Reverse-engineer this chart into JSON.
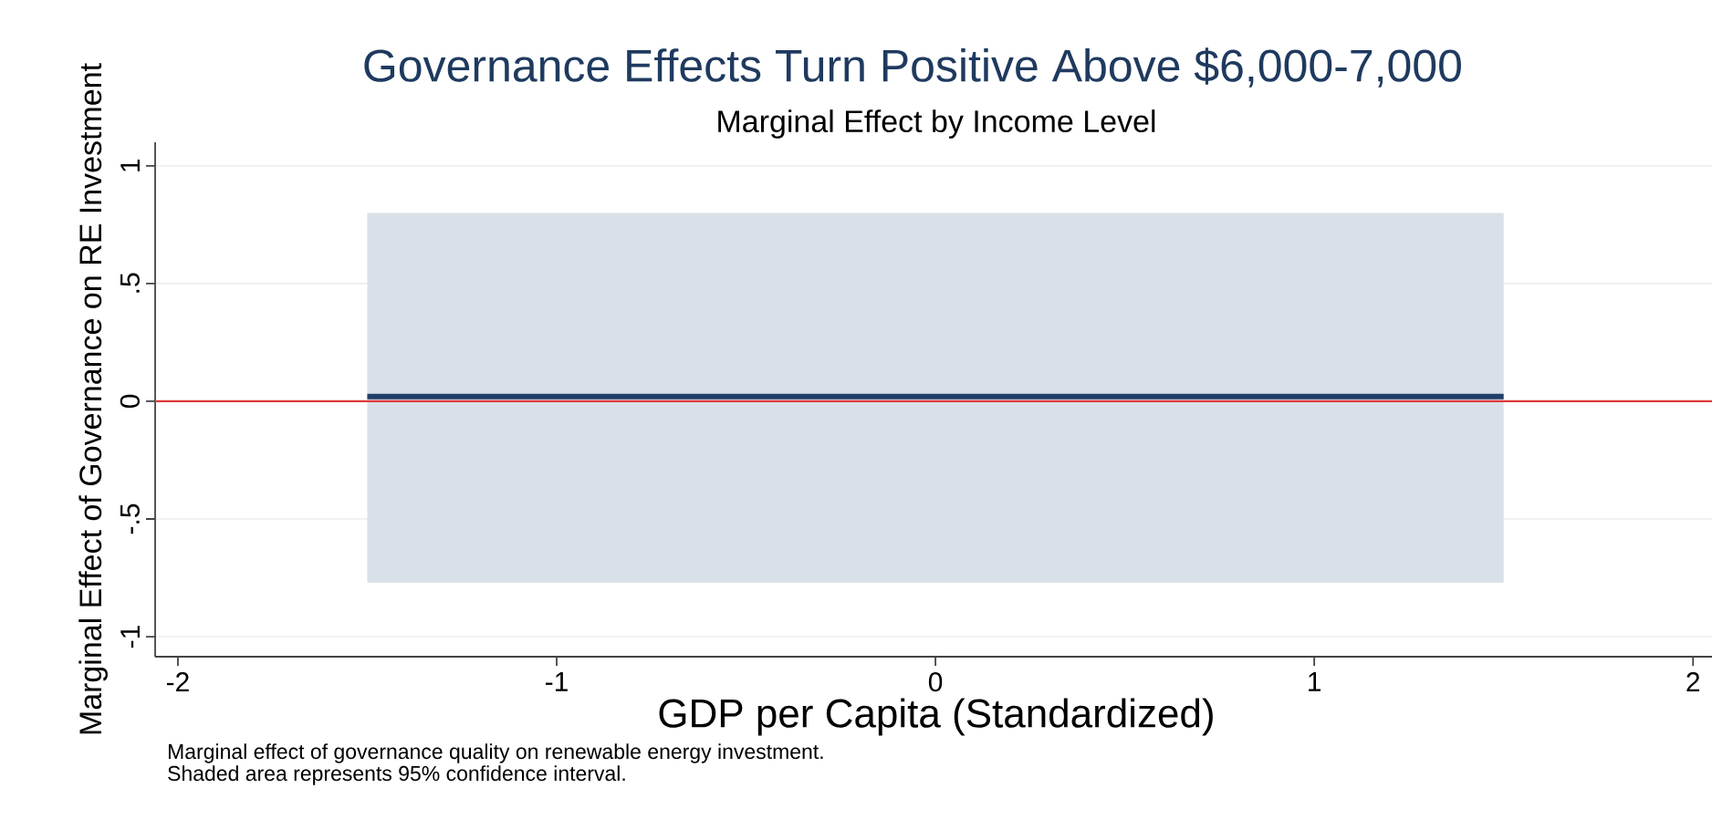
{
  "chart_data": {
    "type": "line",
    "title": "Governance Effects Turn Positive Above $6,000-7,000",
    "subtitle": "Marginal Effect by Income Level",
    "xlabel": "GDP per Capita (Standardized)",
    "ylabel": "Marginal Effect of Governance on RE Investment",
    "annotations": [
      "Marginal effect of governance quality on renewable energy investment.",
      "Shaded area represents 95% confidence interval."
    ],
    "series": [
      {
        "color": "#1f3f66",
        "x": [
          -1.5,
          1.5
        ],
        "values": [
          0.02,
          0.02
        ],
        "lower": [
          -0.77,
          -0.77
        ],
        "upper": [
          0.8,
          0.8
        ]
      }
    ],
    "xlim": [
      -2.06,
      2.05
    ],
    "ylim": [
      -1.085,
      1.1
    ],
    "xticks": [
      -2,
      -1,
      0,
      1,
      2
    ],
    "yticks": [
      -1,
      {
        "value": -0.5,
        "label": "-.5"
      },
      0,
      {
        "value": 0.5,
        "label": ".5"
      },
      1
    ],
    "ref_lines": [
      {
        "axis": "y",
        "value": 0,
        "color": "#e03a3a"
      }
    ],
    "grid": "y"
  }
}
